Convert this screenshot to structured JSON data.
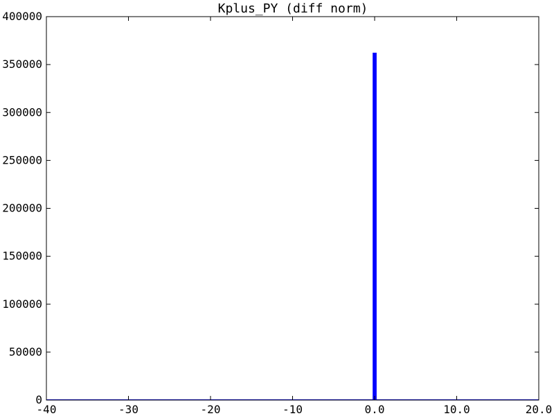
{
  "chart_data": {
    "type": "bar",
    "title": "Kplus_PY (diff norm)",
    "xlabel": "",
    "ylabel": "",
    "xlim": [
      -40,
      20
    ],
    "ylim": [
      0,
      400000
    ],
    "grid": false,
    "x_ticks": [
      -40,
      -30,
      -20,
      -10,
      0,
      10,
      20
    ],
    "x_tick_labels": [
      "-40",
      "-30",
      "-20",
      "-10",
      "0.0",
      "10.0",
      "20.0"
    ],
    "y_ticks": [
      0,
      50000,
      100000,
      150000,
      200000,
      250000,
      300000,
      350000,
      400000
    ],
    "y_tick_labels": [
      "0",
      "50000",
      "100000",
      "150000",
      "200000",
      "250000",
      "300000",
      "350000",
      "400000"
    ],
    "bar_color": "#0000ff",
    "bins": [
      {
        "x0": -0.2,
        "x1": 0.2,
        "value": 362000
      }
    ]
  }
}
